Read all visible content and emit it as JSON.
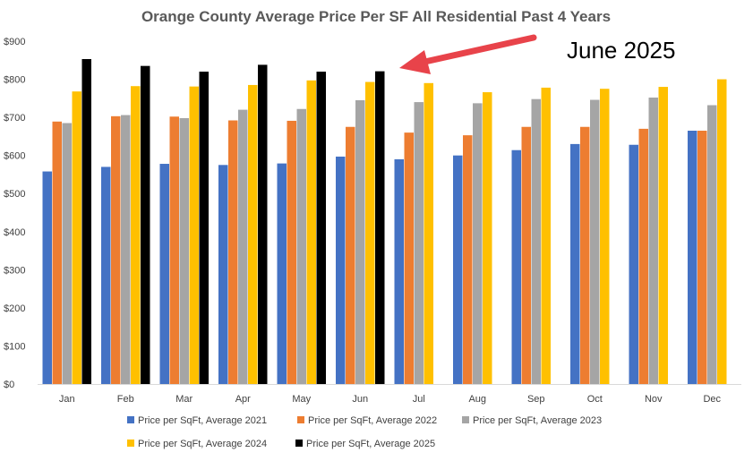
{
  "chart_data": {
    "type": "bar",
    "title": "Orange County Average Price Per SF All Residential Past 4 Years",
    "xlabel": "",
    "ylabel": "",
    "ylim": [
      0,
      900
    ],
    "yticks": [
      "$0",
      "$100",
      "$200",
      "$300",
      "$400",
      "$500",
      "$600",
      "$700",
      "$800",
      "$900"
    ],
    "categories": [
      "Jan",
      "Feb",
      "Mar",
      "Apr",
      "May",
      "Jun",
      "Jul",
      "Aug",
      "Sep",
      "Oct",
      "Nov",
      "Dec"
    ],
    "series": [
      {
        "name": "Price per SqFt, Average 2021",
        "color": "#4472C4",
        "values": [
          558,
          570,
          578,
          575,
          579,
          597,
          590,
          600,
          614,
          630,
          628,
          665
        ]
      },
      {
        "name": "Price per SqFt, Average 2022",
        "color": "#ED7D31",
        "values": [
          689,
          703,
          702,
          692,
          691,
          675,
          660,
          653,
          675,
          675,
          670,
          665
        ]
      },
      {
        "name": "Price per SqFt, Average 2023",
        "color": "#A5A5A5",
        "values": [
          685,
          706,
          698,
          720,
          722,
          745,
          740,
          737,
          748,
          746,
          752,
          732
        ]
      },
      {
        "name": "Price per SqFt, Average 2024",
        "color": "#FFC000",
        "values": [
          768,
          782,
          781,
          785,
          797,
          793,
          790,
          766,
          778,
          775,
          780,
          800
        ]
      },
      {
        "name": "Price per SqFt, Average 2025",
        "color": "#000000",
        "values": [
          853,
          835,
          820,
          838,
          820,
          821,
          null,
          null,
          null,
          null,
          null,
          null
        ]
      }
    ],
    "grid": false,
    "legend": "bottom",
    "annotation": {
      "text": "June 2025",
      "color": "#E8434A"
    }
  }
}
